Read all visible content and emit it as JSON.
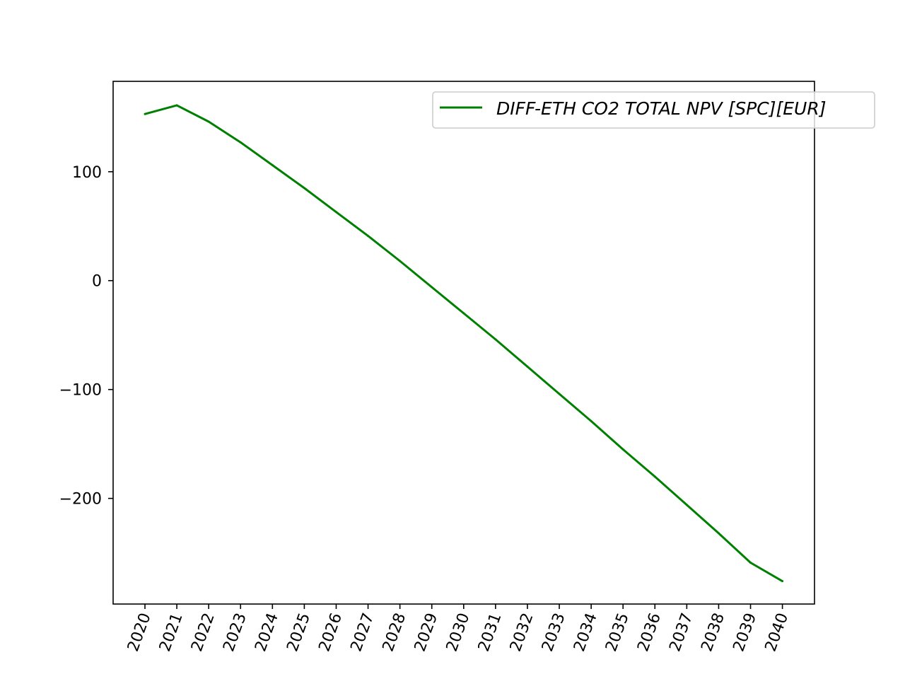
{
  "chart_data": {
    "type": "line",
    "title": "",
    "xlabel": "",
    "ylabel": "",
    "x": [
      "2020",
      "2021",
      "2022",
      "2023",
      "2024",
      "2025",
      "2026",
      "2027",
      "2028",
      "2029",
      "2030",
      "2031",
      "2032",
      "2033",
      "2034",
      "2035",
      "2036",
      "2037",
      "2038",
      "2039",
      "2040"
    ],
    "series": [
      {
        "name": "DIFF-ETH CO2 TOTAL NPV [SPC][EUR]",
        "color": "#008000",
        "values": [
          153,
          161,
          146,
          127,
          106,
          85,
          63,
          41,
          18,
          -6,
          -30,
          -54,
          -79,
          -104,
          -129,
          -155,
          -180,
          -206,
          -232,
          -259,
          -276
        ]
      }
    ],
    "yticks": [
      100,
      0,
      -100,
      -200
    ],
    "ytick_labels": [
      "100",
      "0",
      "−100",
      "−200"
    ],
    "ylim": [
      -297,
      183
    ],
    "legend_position": "top-right",
    "grid": false
  }
}
